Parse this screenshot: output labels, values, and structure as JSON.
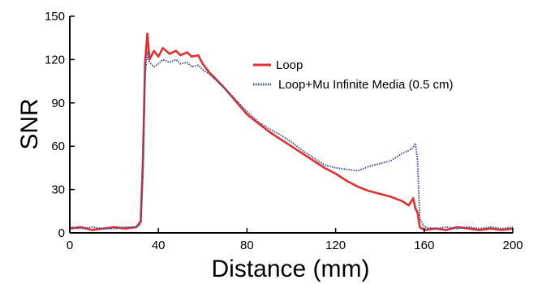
{
  "chart_data": {
    "type": "line",
    "xlabel": "Distance (mm)",
    "ylabel": "SNR",
    "xlim": [
      0,
      200
    ],
    "ylim": [
      0,
      150
    ],
    "xticks": [
      0,
      40,
      80,
      120,
      160,
      200
    ],
    "yticks": [
      0,
      30,
      60,
      90,
      120,
      150
    ],
    "grid": false,
    "legend_position": "top-right",
    "series": [
      {
        "name": "Loop",
        "color": "#e03030",
        "style": "solid",
        "x": [
          0,
          5,
          10,
          15,
          20,
          25,
          30,
          32,
          33,
          34,
          35,
          36,
          38,
          40,
          42,
          45,
          48,
          50,
          53,
          55,
          58,
          60,
          63,
          65,
          70,
          75,
          80,
          85,
          90,
          95,
          100,
          105,
          110,
          115,
          120,
          125,
          130,
          135,
          140,
          145,
          150,
          153,
          155,
          156,
          157,
          158,
          160,
          165,
          170,
          175,
          180,
          185,
          190,
          195,
          200
        ],
        "y": [
          3,
          4,
          2,
          3,
          4,
          3,
          4,
          8,
          50,
          118,
          138,
          120,
          126,
          122,
          128,
          124,
          126,
          123,
          125,
          122,
          123,
          117,
          111,
          108,
          100,
          91,
          82,
          76,
          70,
          65,
          60,
          55,
          50,
          45,
          41,
          36,
          32,
          29,
          27,
          25,
          22,
          19,
          24,
          17,
          14,
          4,
          2,
          3,
          2,
          4,
          3,
          2,
          3,
          2,
          3
        ]
      },
      {
        "name": "Loop+Mu Infinite Media (0.5 cm)",
        "color": "#3a4aa8",
        "style": "dotted",
        "x": [
          0,
          5,
          10,
          15,
          20,
          25,
          30,
          32,
          33,
          34,
          35,
          36,
          38,
          40,
          42,
          45,
          48,
          50,
          53,
          55,
          58,
          60,
          63,
          65,
          70,
          75,
          80,
          85,
          90,
          95,
          100,
          105,
          110,
          115,
          120,
          125,
          130,
          135,
          140,
          145,
          150,
          153,
          155,
          156,
          157,
          158,
          160,
          165,
          170,
          175,
          180,
          185,
          190,
          195,
          200
        ],
        "y": [
          4,
          3,
          4,
          3,
          3,
          4,
          4,
          6,
          40,
          110,
          125,
          118,
          115,
          117,
          120,
          118,
          120,
          117,
          118,
          115,
          116,
          113,
          110,
          107,
          100,
          92,
          84,
          77,
          72,
          68,
          63,
          57,
          52,
          47,
          45,
          44,
          43,
          46,
          48,
          50,
          55,
          57,
          59,
          62,
          50,
          10,
          4,
          3,
          4,
          3,
          4,
          3,
          4,
          3,
          4
        ]
      }
    ]
  }
}
